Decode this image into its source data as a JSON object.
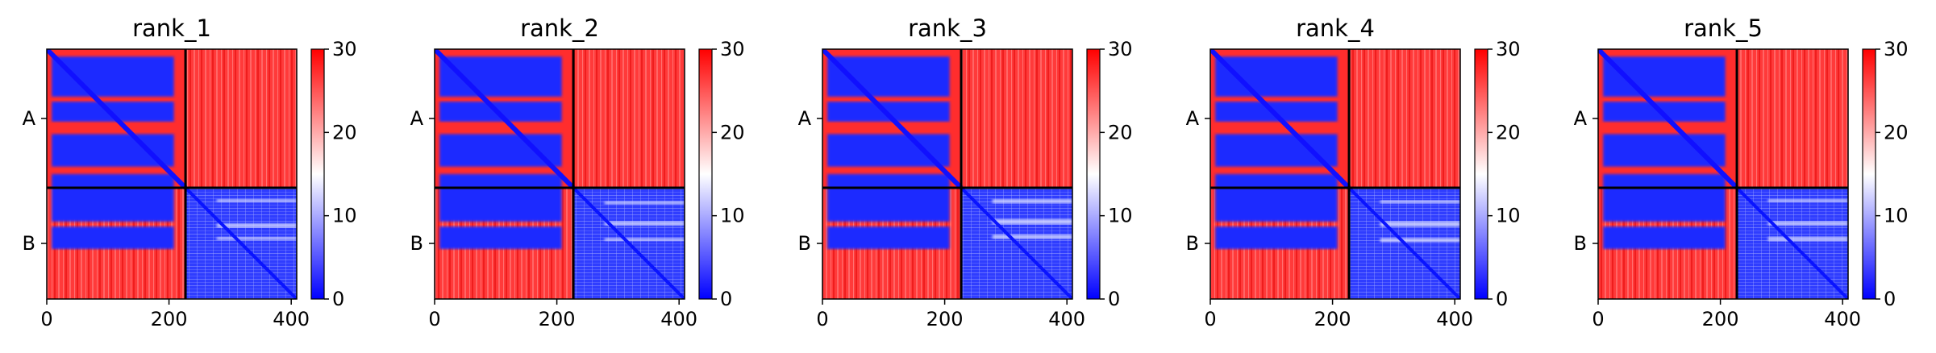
{
  "figure": {
    "background": "#ffffff"
  },
  "chart_data": [
    {
      "type": "heatmap",
      "title": "rank_1",
      "xlabel": "",
      "ylabel": "",
      "x_ticks": [
        "0",
        "200",
        "400"
      ],
      "x_tick_values": [
        0,
        200,
        400
      ],
      "y_ticks": [
        "A",
        "B"
      ],
      "chains": [
        {
          "name": "A",
          "length": 227
        },
        {
          "name": "B",
          "length": 182
        }
      ],
      "extent": [
        0,
        409
      ],
      "colorbar": {
        "ticks": [
          "0",
          "10",
          "20",
          "30"
        ],
        "tick_values": [
          0,
          10,
          20,
          30
        ],
        "range": [
          0,
          30
        ],
        "colors": [
          "#0000ff",
          "#ffffff",
          "#ff0000"
        ]
      },
      "intra_a_low_bands": [
        [
          0.03,
          0.19
        ],
        [
          0.21,
          0.29
        ],
        [
          0.34,
          0.47
        ],
        [
          0.5,
          0.69
        ],
        [
          0.71,
          0.8
        ]
      ],
      "intra_b_light_rows": [
        [
          0.1,
          0.13
        ],
        [
          0.32,
          0.36
        ],
        [
          0.44,
          0.47
        ]
      ],
      "grid": false
    },
    {
      "type": "heatmap",
      "title": "rank_2",
      "xlabel": "",
      "ylabel": "",
      "x_ticks": [
        "0",
        "200",
        "400"
      ],
      "x_tick_values": [
        0,
        200,
        400
      ],
      "y_ticks": [
        "A",
        "B"
      ],
      "chains": [
        {
          "name": "A",
          "length": 227
        },
        {
          "name": "B",
          "length": 182
        }
      ],
      "extent": [
        0,
        409
      ],
      "colorbar": {
        "ticks": [
          "0",
          "10",
          "20",
          "30"
        ],
        "tick_values": [
          0,
          10,
          20,
          30
        ],
        "range": [
          0,
          30
        ],
        "colors": [
          "#0000ff",
          "#ffffff",
          "#ff0000"
        ]
      },
      "intra_a_low_bands": [
        [
          0.03,
          0.19
        ],
        [
          0.21,
          0.29
        ],
        [
          0.34,
          0.47
        ],
        [
          0.5,
          0.69
        ],
        [
          0.71,
          0.8
        ]
      ],
      "intra_b_light_rows": [
        [
          0.12,
          0.15
        ],
        [
          0.3,
          0.34
        ],
        [
          0.45,
          0.48
        ]
      ],
      "grid": false
    },
    {
      "type": "heatmap",
      "title": "rank_3",
      "xlabel": "",
      "ylabel": "",
      "x_ticks": [
        "0",
        "200",
        "400"
      ],
      "x_tick_values": [
        0,
        200,
        400
      ],
      "y_ticks": [
        "A",
        "B"
      ],
      "chains": [
        {
          "name": "A",
          "length": 227
        },
        {
          "name": "B",
          "length": 182
        }
      ],
      "extent": [
        0,
        409
      ],
      "colorbar": {
        "ticks": [
          "0",
          "10",
          "20",
          "30"
        ],
        "tick_values": [
          0,
          10,
          20,
          30
        ],
        "range": [
          0,
          30
        ],
        "colors": [
          "#0000ff",
          "#ffffff",
          "#ff0000"
        ]
      },
      "intra_a_low_bands": [
        [
          0.03,
          0.19
        ],
        [
          0.21,
          0.29
        ],
        [
          0.34,
          0.47
        ],
        [
          0.5,
          0.69
        ],
        [
          0.71,
          0.8
        ]
      ],
      "intra_b_light_rows": [
        [
          0.1,
          0.14
        ],
        [
          0.28,
          0.33
        ],
        [
          0.42,
          0.46
        ]
      ],
      "grid": false
    },
    {
      "type": "heatmap",
      "title": "rank_4",
      "xlabel": "",
      "ylabel": "",
      "x_ticks": [
        "0",
        "200",
        "400"
      ],
      "x_tick_values": [
        0,
        200,
        400
      ],
      "y_ticks": [
        "A",
        "B"
      ],
      "chains": [
        {
          "name": "A",
          "length": 227
        },
        {
          "name": "B",
          "length": 182
        }
      ],
      "extent": [
        0,
        409
      ],
      "colorbar": {
        "ticks": [
          "0",
          "10",
          "20",
          "30"
        ],
        "tick_values": [
          0,
          10,
          20,
          30
        ],
        "range": [
          0,
          30
        ],
        "colors": [
          "#0000ff",
          "#ffffff",
          "#ff0000"
        ]
      },
      "intra_a_low_bands": [
        [
          0.03,
          0.19
        ],
        [
          0.21,
          0.29
        ],
        [
          0.34,
          0.47
        ],
        [
          0.5,
          0.69
        ],
        [
          0.71,
          0.8
        ]
      ],
      "intra_b_light_rows": [
        [
          0.11,
          0.14
        ],
        [
          0.3,
          0.35
        ],
        [
          0.45,
          0.49
        ]
      ],
      "grid": false
    },
    {
      "type": "heatmap",
      "title": "rank_5",
      "xlabel": "",
      "ylabel": "",
      "x_ticks": [
        "0",
        "200",
        "400"
      ],
      "x_tick_values": [
        0,
        200,
        400
      ],
      "y_ticks": [
        "A",
        "B"
      ],
      "chains": [
        {
          "name": "A",
          "length": 227
        },
        {
          "name": "B",
          "length": 182
        }
      ],
      "extent": [
        0,
        409
      ],
      "colorbar": {
        "ticks": [
          "0",
          "10",
          "20",
          "30"
        ],
        "tick_values": [
          0,
          10,
          20,
          30
        ],
        "range": [
          0,
          30
        ],
        "colors": [
          "#0000ff",
          "#ffffff",
          "#ff0000"
        ]
      },
      "intra_a_low_bands": [
        [
          0.03,
          0.19
        ],
        [
          0.21,
          0.29
        ],
        [
          0.34,
          0.47
        ],
        [
          0.5,
          0.69
        ],
        [
          0.71,
          0.8
        ]
      ],
      "intra_b_light_rows": [
        [
          0.1,
          0.13
        ],
        [
          0.3,
          0.34
        ],
        [
          0.44,
          0.48
        ]
      ],
      "grid": false
    }
  ]
}
